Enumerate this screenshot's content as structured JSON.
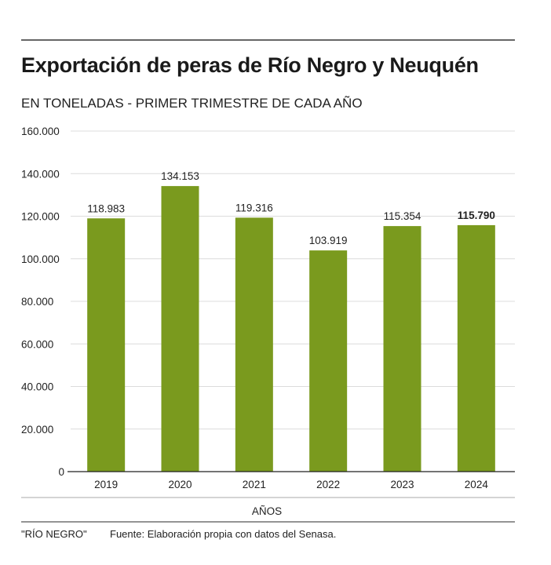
{
  "chart_data": {
    "type": "bar",
    "title": "Exportación de peras de Río Negro y Neuquén",
    "subtitle": "EN TONELADAS - PRIMER TRIMESTRE DE CADA AÑO",
    "xlabel": "AÑOS",
    "ylabel": "",
    "categories": [
      "2019",
      "2020",
      "2021",
      "2022",
      "2023",
      "2024"
    ],
    "values": [
      118983,
      134153,
      119316,
      103919,
      115354,
      115790
    ],
    "value_labels": [
      "118.983",
      "134.153",
      "119.316",
      "103.919",
      "115.354",
      "115.790"
    ],
    "ylim": [
      0,
      160000
    ],
    "yticks": [
      0,
      20000,
      40000,
      60000,
      80000,
      100000,
      120000,
      140000,
      160000
    ],
    "ytick_labels": [
      "0",
      "20.000",
      "40.000",
      "60.000",
      "80.000",
      "100.000",
      "120.000",
      "140.000",
      "160.000"
    ],
    "grid": true,
    "bar_color": "#7a9a1e"
  },
  "footer": {
    "credit": "\"RÍO NEGRO\"",
    "source": "Fuente: Elaboración propia con datos del Senasa."
  }
}
